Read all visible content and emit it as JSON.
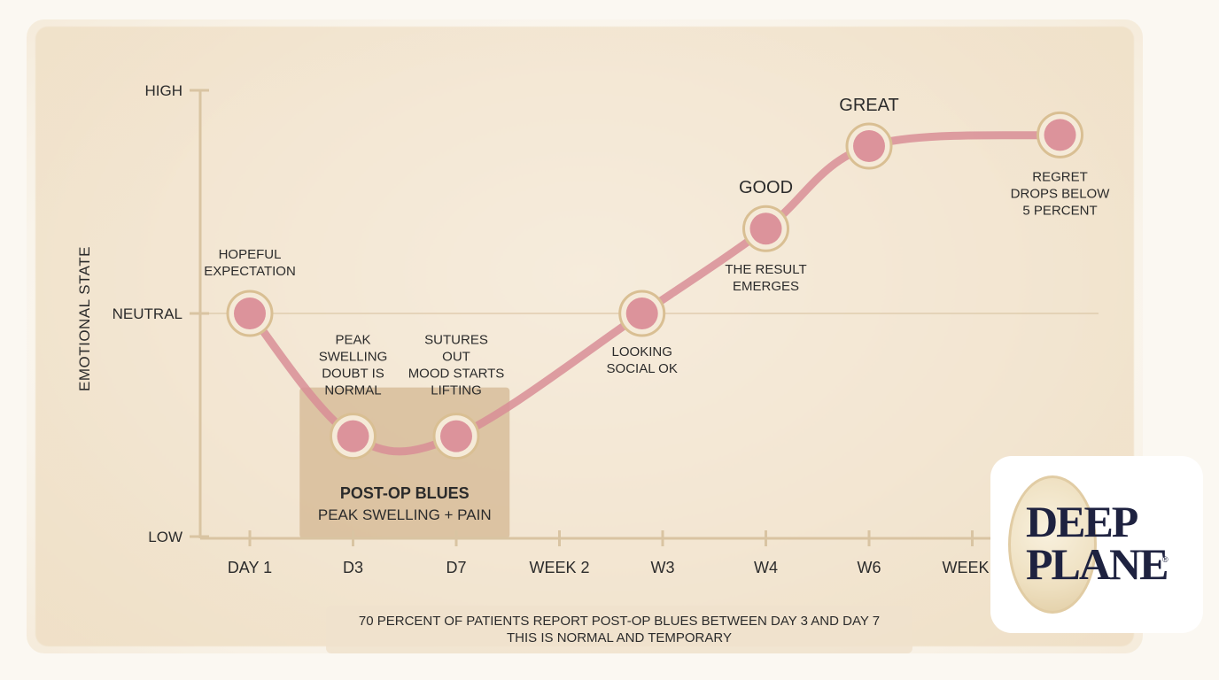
{
  "chart_data": {
    "type": "line",
    "title": "",
    "xlabel": "",
    "ylabel": "EMOTIONAL STATE",
    "y_ticks": [
      "LOW",
      "NEUTRAL",
      "HIGH"
    ],
    "y_values": [
      0,
      1,
      2
    ],
    "ylim": [
      0,
      2
    ],
    "reference_line": {
      "label": "NEUTRAL",
      "y": 1
    },
    "x_ticks": [
      "DAY 1",
      "D3",
      "D7",
      "WEEK 2",
      "W3",
      "W4",
      "W6",
      "WEEK 8"
    ],
    "series": [
      {
        "points": [
          {
            "x": 0.0,
            "y": 1.0,
            "label": "HOPEFUL\nEXPECTATION"
          },
          {
            "x": 1.0,
            "y": 0.45,
            "label": "PEAK\nSWELLING\nDOUBT IS\nNORMAL"
          },
          {
            "x": 2.0,
            "y": 0.45,
            "label": "SUTURES\nOUT\nMOOD STARTS\nLIFTING"
          },
          {
            "x": 3.8,
            "y": 1.0,
            "label": "LOOKING\nSOCIAL OK"
          },
          {
            "x": 5.0,
            "y": 1.38,
            "label": "THE RESULT\nEMERGES",
            "tag": "GOOD"
          },
          {
            "x": 6.0,
            "y": 1.75,
            "label": "",
            "tag": "GREAT"
          },
          {
            "x": 7.85,
            "y": 1.8,
            "label": "REGRET\nDROPS BELOW\n5 PERCENT"
          }
        ]
      }
    ],
    "highlight_region": {
      "x_range": [
        0.5,
        2.5
      ],
      "title": "POST-OP BLUES",
      "subtitle": "PEAK SWELLING + PAIN"
    },
    "grid": false,
    "legend": "none"
  },
  "colors": {
    "line": "#d88e97",
    "marker_fill": "#d98a95",
    "marker_ring": "#d9bf93",
    "region": "#c9a57a",
    "axis": "#d9c4a2",
    "text": "#2b2b2b"
  },
  "footnote": {
    "line1": "70 PERCENT OF PATIENTS REPORT POST-OP BLUES BETWEEN DAY 3 AND DAY 7",
    "line2": "THIS IS NORMAL AND TEMPORARY"
  },
  "logo": {
    "line1": "DEEP",
    "line2": "PLANE",
    "reg": "®"
  }
}
